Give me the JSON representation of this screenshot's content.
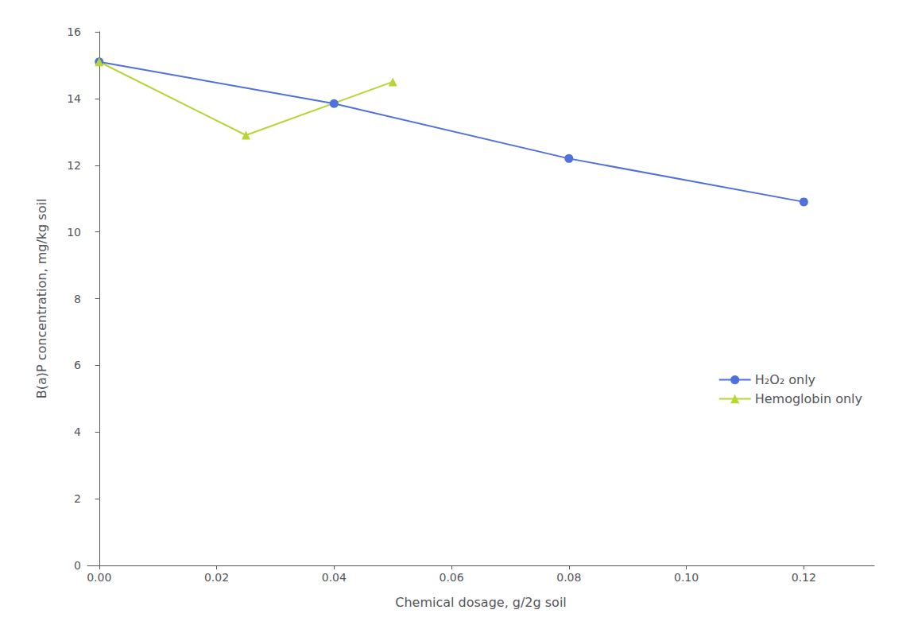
{
  "chart_data": {
    "type": "line",
    "xlabel": "Chemical dosage, g/2g soil",
    "ylabel": "B(a)P concentration, mg/kg soil",
    "series": [
      {
        "name": "H₂O₂ only",
        "x": [
          0.0,
          0.04,
          0.08,
          0.12
        ],
        "values": [
          15.1,
          13.85,
          12.2,
          10.9
        ],
        "marker": "circle"
      },
      {
        "name": "Hemoglobin only",
        "x": [
          0.0,
          0.025,
          0.05
        ],
        "values": [
          15.1,
          12.9,
          14.5
        ],
        "marker": "triangle"
      }
    ],
    "xlim": [
      -0.002,
      0.132
    ],
    "xticks": [
      {
        "value": 0.0,
        "label": "0.00"
      },
      {
        "value": 0.02,
        "label": "0.02"
      },
      {
        "value": 0.04,
        "label": "0.04"
      },
      {
        "value": 0.06,
        "label": "0.06"
      },
      {
        "value": 0.08,
        "label": "0.08"
      },
      {
        "value": 0.1,
        "label": "0.10"
      },
      {
        "value": 0.12,
        "label": "0.12"
      }
    ],
    "ylim": [
      0,
      16
    ],
    "yticks": [
      0,
      2,
      4,
      6,
      8,
      10,
      12,
      14,
      16
    ],
    "grid": false,
    "legend": "right"
  }
}
